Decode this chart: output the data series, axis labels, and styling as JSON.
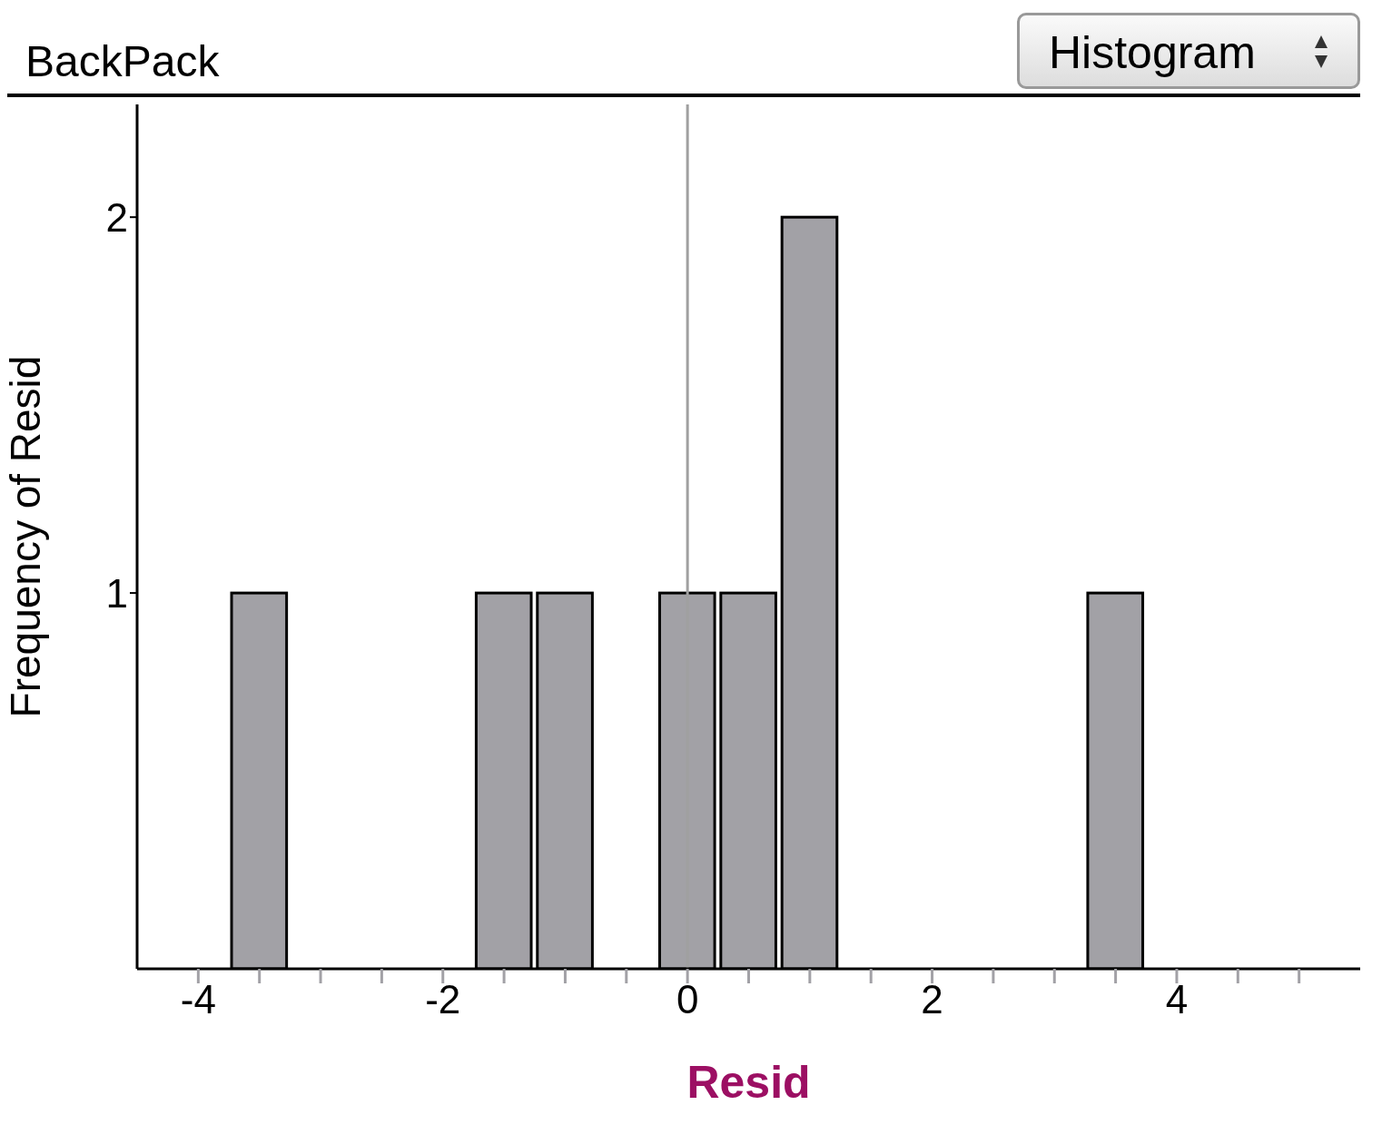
{
  "chart_data": {
    "type": "histogram",
    "title": "BackPack",
    "xlabel": "Resid",
    "ylabel": "Frequency of Resid",
    "annotations": [
      "Histogram"
    ],
    "bins": [
      -3.75,
      -3.25,
      -2.75,
      -2.25,
      -1.75,
      -1.25,
      -0.75,
      -0.25,
      0.25,
      0.75,
      1.25,
      1.75,
      2.25,
      2.75,
      3.25,
      3.75
    ],
    "values": [
      1,
      0,
      0,
      0,
      1,
      1,
      0,
      1,
      1,
      2,
      0,
      0,
      0,
      0,
      1
    ],
    "color": "#a2a1a6",
    "xlim": [
      -4.5,
      5.5
    ],
    "xticks": [
      -4,
      {
        "value": -3.5,
        "label": null
      },
      {
        "value": -3,
        "label": null
      },
      {
        "value": -2.5,
        "label": null
      },
      -2,
      {
        "value": -1.5,
        "label": null
      },
      {
        "value": -1,
        "label": null
      },
      {
        "value": -0.5,
        "label": null
      },
      0,
      {
        "value": 0.5,
        "label": null
      },
      {
        "value": 1,
        "label": null
      },
      {
        "value": 1.5,
        "label": null
      },
      2,
      {
        "value": 2.5,
        "label": null
      },
      {
        "value": 3,
        "label": null
      },
      {
        "value": 3.5,
        "label": null
      },
      4,
      {
        "value": 4.5,
        "label": null
      },
      {
        "value": 5,
        "label": null
      }
    ],
    "ylim": [
      0,
      2.3
    ],
    "yticks": [
      1,
      2
    ],
    "ref_lines": [
      {
        "axis": "x",
        "value": 0,
        "color": "#a0a0a0"
      }
    ],
    "grid": false,
    "legend": false
  }
}
